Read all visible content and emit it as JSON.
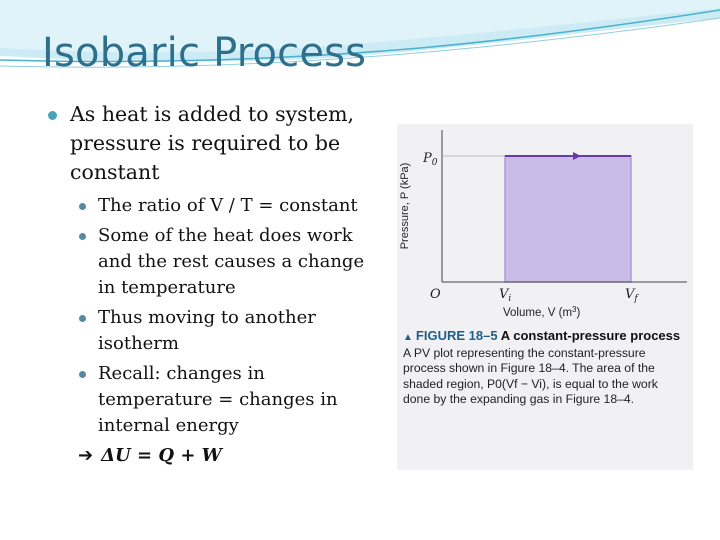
{
  "slide": {
    "title": "Isobaric Process",
    "bullet": "As heat is added to system, pressure is required to be constant",
    "sub_bullets": [
      "The ratio of V / T = constant",
      "Some of the heat does work and the rest causes a change in temperature",
      "Thus moving to another isotherm",
      "Recall: changes in temperature = changes in internal energy"
    ],
    "arrow_glyph": "➔",
    "equation": "ΔU = Q + W"
  },
  "figure": {
    "y_axis_label": "Pressure, P (kPa)",
    "y_tick_label": "P",
    "y_tick_sub": "0",
    "origin_label": "O",
    "x_tick_vi": "V",
    "x_tick_vi_sub": "i",
    "x_tick_vf": "V",
    "x_tick_vf_sub": "f",
    "x_axis_label": "Volume, V (m",
    "x_axis_sup": "3",
    "x_axis_close": ")",
    "caption_figure": "FIGURE 18–5",
    "caption_title": "A constant-pressure process",
    "caption_text": "A PV plot representing the constant-pressure process shown in Figure 18–4. The area of the shaded region, P0(Vf − Vi), is equal to the work done by the expanding gas in Figure 18–4.",
    "colors": {
      "shade": "#c9bde8",
      "line": "#6a3aa8",
      "axes": "#444444"
    }
  }
}
